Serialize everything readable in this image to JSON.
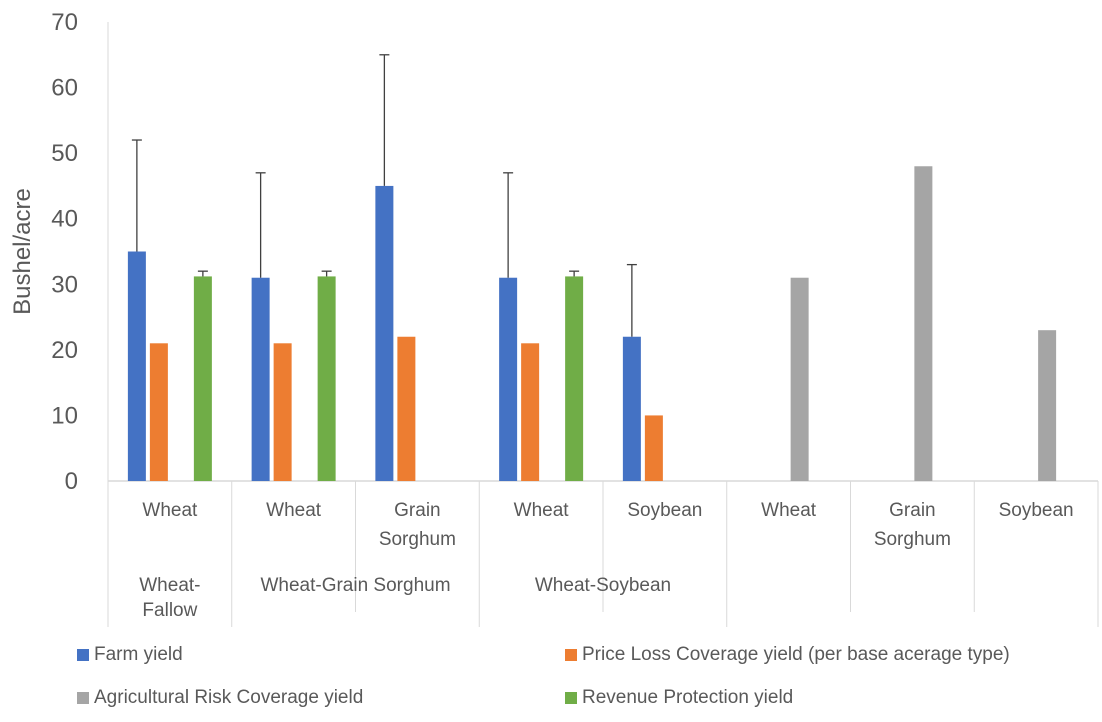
{
  "chart_data": {
    "type": "bar",
    "ylabel": "Bushel/acre",
    "xlabel": "",
    "ylim": [
      0,
      70
    ],
    "yticks": [
      0,
      10,
      20,
      30,
      40,
      50,
      60,
      70
    ],
    "grid": false,
    "legend_position": "bottom",
    "categories": [
      {
        "label": "Wheat",
        "group": "Wheat-Fallow"
      },
      {
        "label": "Wheat",
        "group": "Wheat-Grain Sorghum"
      },
      {
        "label": "Grain Sorghum",
        "group": "Wheat-Grain Sorghum"
      },
      {
        "label": "Wheat",
        "group": "Wheat-Soybean"
      },
      {
        "label": "Soybean",
        "group": "Wheat-Soybean"
      },
      {
        "label": "Wheat",
        "group": ""
      },
      {
        "label": "Grain Sorghum",
        "group": ""
      },
      {
        "label": "Soybean",
        "group": ""
      }
    ],
    "groups": [
      {
        "label": "Wheat-Fallow",
        "span": [
          0,
          0
        ]
      },
      {
        "label": "Wheat-Grain Sorghum",
        "span": [
          1,
          2
        ]
      },
      {
        "label": "Wheat-Soybean",
        "span": [
          3,
          4
        ]
      },
      {
        "label": "",
        "span": [
          5,
          7
        ]
      }
    ],
    "series": [
      {
        "name": "Farm yield",
        "color": "#4472C4",
        "values": [
          35,
          31,
          45,
          31,
          22,
          null,
          null,
          null
        ],
        "error_upper": [
          52,
          47,
          65,
          47,
          33,
          null,
          null,
          null
        ]
      },
      {
        "name": "Price Loss Coverage yield (per base acerage type)",
        "color": "#ED7D31",
        "values": [
          21,
          21,
          22,
          21,
          10,
          null,
          null,
          null
        ],
        "error_upper": [
          null,
          null,
          null,
          null,
          null,
          null,
          null,
          null
        ]
      },
      {
        "name": "Agricultural Risk Coverage yield",
        "color": "#A5A5A5",
        "values": [
          null,
          null,
          null,
          null,
          null,
          31,
          48,
          23
        ],
        "error_upper": [
          null,
          null,
          null,
          null,
          null,
          null,
          null,
          null
        ]
      },
      {
        "name": "Revenue Protection yield",
        "color": "#70AD47",
        "values": [
          31.2,
          31.2,
          null,
          31.2,
          null,
          null,
          null,
          null
        ],
        "error_upper": [
          32,
          32,
          null,
          32,
          null,
          null,
          null,
          null
        ]
      }
    ]
  }
}
